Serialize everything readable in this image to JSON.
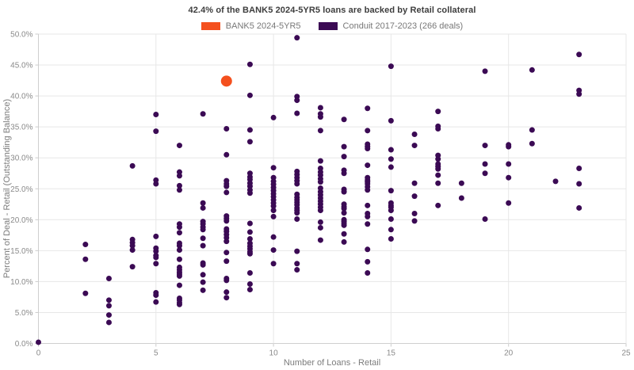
{
  "chart_data": {
    "type": "scatter",
    "title": "42.4% of the BANK5 2024-5YR5 loans are backed by Retail collateral",
    "xlabel": "Number of Loans - Retail",
    "ylabel": "Percent of Deal - Retail (Outstanding Balance)",
    "xlim": [
      0,
      25
    ],
    "ylim": [
      0,
      50
    ],
    "x_ticks": [
      0,
      5,
      10,
      15,
      20,
      25
    ],
    "y_ticks": [
      0,
      5,
      10,
      15,
      20,
      25,
      30,
      35,
      40,
      45,
      50
    ],
    "y_tick_labels": [
      "0.0%",
      "5.0%",
      "10.0%",
      "15.0%",
      "20.0%",
      "25.0%",
      "30.0%",
      "35.0%",
      "40.0%",
      "45.0%",
      "50.0%"
    ],
    "grid": true,
    "legend_position": "top-center",
    "series": [
      {
        "name": "BANK5 2024-5YR5",
        "color": "#f4501e",
        "marker_diameter": 14,
        "points": [
          [
            8,
            42.4
          ]
        ]
      },
      {
        "name": "Conduit 2017-2023 (266 deals)",
        "color": "#3b0a54",
        "marker_diameter": 7,
        "points": [
          [
            0,
            0.2
          ],
          [
            2,
            16.0
          ],
          [
            2,
            13.6
          ],
          [
            2,
            8.1
          ],
          [
            3,
            10.5
          ],
          [
            3,
            7.0
          ],
          [
            3,
            6.1
          ],
          [
            3,
            4.6
          ],
          [
            3,
            3.4
          ],
          [
            4,
            28.7
          ],
          [
            4,
            16.8
          ],
          [
            4,
            16.3
          ],
          [
            4,
            15.8
          ],
          [
            4,
            15.1
          ],
          [
            4,
            12.4
          ],
          [
            5,
            37.0
          ],
          [
            5,
            34.3
          ],
          [
            5,
            26.4
          ],
          [
            5,
            25.8
          ],
          [
            5,
            17.3
          ],
          [
            5,
            15.4
          ],
          [
            5,
            14.9
          ],
          [
            5,
            14.2
          ],
          [
            5,
            13.9
          ],
          [
            5,
            12.9
          ],
          [
            5,
            8.2
          ],
          [
            5,
            7.8
          ],
          [
            5,
            6.7
          ],
          [
            6,
            32.0
          ],
          [
            6,
            27.7
          ],
          [
            6,
            27.1
          ],
          [
            6,
            25.5
          ],
          [
            6,
            24.8
          ],
          [
            6,
            19.3
          ],
          [
            6,
            18.8
          ],
          [
            6,
            17.9
          ],
          [
            6,
            16.2
          ],
          [
            6,
            15.8
          ],
          [
            6,
            15.1
          ],
          [
            6,
            13.6
          ],
          [
            6,
            12.3
          ],
          [
            6,
            11.9
          ],
          [
            6,
            11.5
          ],
          [
            6,
            11.2
          ],
          [
            6,
            10.9
          ],
          [
            6,
            9.4
          ],
          [
            6,
            7.3
          ],
          [
            6,
            7.0
          ],
          [
            6,
            6.6
          ],
          [
            6,
            6.3
          ],
          [
            7,
            37.1
          ],
          [
            7,
            22.7
          ],
          [
            7,
            21.9
          ],
          [
            7,
            19.7
          ],
          [
            7,
            19.3
          ],
          [
            7,
            18.8
          ],
          [
            7,
            18.4
          ],
          [
            7,
            17.0
          ],
          [
            7,
            15.8
          ],
          [
            7,
            13.0
          ],
          [
            7,
            12.7
          ],
          [
            7,
            11.1
          ],
          [
            7,
            9.9
          ],
          [
            7,
            8.6
          ],
          [
            8,
            34.7
          ],
          [
            8,
            30.5
          ],
          [
            8,
            26.3
          ],
          [
            8,
            25.8
          ],
          [
            8,
            25.4
          ],
          [
            8,
            24.4
          ],
          [
            8,
            20.6
          ],
          [
            8,
            20.2
          ],
          [
            8,
            19.8
          ],
          [
            8,
            18.5
          ],
          [
            8,
            18.1
          ],
          [
            8,
            17.6
          ],
          [
            8,
            17.1
          ],
          [
            8,
            16.5
          ],
          [
            8,
            14.7
          ],
          [
            8,
            13.3
          ],
          [
            8,
            10.5
          ],
          [
            8,
            10.2
          ],
          [
            8,
            8.3
          ],
          [
            8,
            7.4
          ],
          [
            9,
            45.1
          ],
          [
            9,
            40.1
          ],
          [
            9,
            34.5
          ],
          [
            9,
            32.6
          ],
          [
            9,
            27.5
          ],
          [
            9,
            26.9
          ],
          [
            9,
            26.5
          ],
          [
            9,
            25.9
          ],
          [
            9,
            25.4
          ],
          [
            9,
            24.8
          ],
          [
            9,
            24.3
          ],
          [
            9,
            19.4
          ],
          [
            9,
            18.0
          ],
          [
            9,
            16.9
          ],
          [
            9,
            16.2
          ],
          [
            9,
            15.7
          ],
          [
            9,
            15.3
          ],
          [
            9,
            14.8
          ],
          [
            9,
            14.5
          ],
          [
            9,
            11.4
          ],
          [
            9,
            9.6
          ],
          [
            9,
            8.7
          ],
          [
            10,
            36.5
          ],
          [
            10,
            28.4
          ],
          [
            10,
            26.8
          ],
          [
            10,
            26.2
          ],
          [
            10,
            25.7
          ],
          [
            10,
            25.2
          ],
          [
            10,
            24.7
          ],
          [
            10,
            24.2
          ],
          [
            10,
            23.7
          ],
          [
            10,
            23.2
          ],
          [
            10,
            22.7
          ],
          [
            10,
            22.2
          ],
          [
            10,
            21.5
          ],
          [
            10,
            20.5
          ],
          [
            10,
            17.2
          ],
          [
            10,
            15.1
          ],
          [
            10,
            12.9
          ],
          [
            11,
            49.4
          ],
          [
            11,
            39.9
          ],
          [
            11,
            39.3
          ],
          [
            11,
            37.2
          ],
          [
            11,
            27.8
          ],
          [
            11,
            27.3
          ],
          [
            11,
            26.8
          ],
          [
            11,
            26.3
          ],
          [
            11,
            25.8
          ],
          [
            11,
            24.1
          ],
          [
            11,
            23.6
          ],
          [
            11,
            23.2
          ],
          [
            11,
            22.8
          ],
          [
            11,
            22.4
          ],
          [
            11,
            21.9
          ],
          [
            11,
            21.5
          ],
          [
            11,
            21.1
          ],
          [
            11,
            20.1
          ],
          [
            11,
            14.9
          ],
          [
            11,
            12.9
          ],
          [
            11,
            11.9
          ],
          [
            12,
            38.1
          ],
          [
            12,
            37.1
          ],
          [
            12,
            36.6
          ],
          [
            12,
            34.4
          ],
          [
            12,
            29.5
          ],
          [
            12,
            28.3
          ],
          [
            12,
            27.7
          ],
          [
            12,
            27.2
          ],
          [
            12,
            26.6
          ],
          [
            12,
            26.1
          ],
          [
            12,
            25.1
          ],
          [
            12,
            24.5
          ],
          [
            12,
            24.0
          ],
          [
            12,
            23.5
          ],
          [
            12,
            23.0
          ],
          [
            12,
            22.5
          ],
          [
            12,
            22.0
          ],
          [
            12,
            21.5
          ],
          [
            12,
            19.6
          ],
          [
            12,
            18.7
          ],
          [
            12,
            16.7
          ],
          [
            13,
            36.2
          ],
          [
            13,
            31.8
          ],
          [
            13,
            30.2
          ],
          [
            13,
            28.0
          ],
          [
            13,
            27.5
          ],
          [
            13,
            24.9
          ],
          [
            13,
            24.5
          ],
          [
            13,
            22.5
          ],
          [
            13,
            22.1
          ],
          [
            13,
            21.8
          ],
          [
            13,
            21.1
          ],
          [
            13,
            20.0
          ],
          [
            13,
            19.7
          ],
          [
            13,
            19.4
          ],
          [
            13,
            19.1
          ],
          [
            13,
            17.7
          ],
          [
            13,
            16.4
          ],
          [
            14,
            38.0
          ],
          [
            14,
            34.4
          ],
          [
            14,
            32.2
          ],
          [
            14,
            31.8
          ],
          [
            14,
            31.5
          ],
          [
            14,
            28.8
          ],
          [
            14,
            26.8
          ],
          [
            14,
            26.4
          ],
          [
            14,
            26.1
          ],
          [
            14,
            25.8
          ],
          [
            14,
            25.3
          ],
          [
            14,
            24.8
          ],
          [
            14,
            22.3
          ],
          [
            14,
            21.0
          ],
          [
            14,
            20.5
          ],
          [
            14,
            19.3
          ],
          [
            14,
            15.2
          ],
          [
            14,
            13.2
          ],
          [
            14,
            11.4
          ],
          [
            15,
            44.8
          ],
          [
            15,
            36.0
          ],
          [
            15,
            31.3
          ],
          [
            15,
            29.8
          ],
          [
            15,
            28.5
          ],
          [
            15,
            24.7
          ],
          [
            15,
            22.7
          ],
          [
            15,
            22.3
          ],
          [
            15,
            22.0
          ],
          [
            15,
            21.5
          ],
          [
            15,
            20.1
          ],
          [
            15,
            18.4
          ],
          [
            15,
            16.9
          ],
          [
            16,
            33.8
          ],
          [
            16,
            32.0
          ],
          [
            16,
            25.9
          ],
          [
            16,
            23.8
          ],
          [
            16,
            21.0
          ],
          [
            16,
            19.8
          ],
          [
            17,
            37.5
          ],
          [
            17,
            35.1
          ],
          [
            17,
            34.7
          ],
          [
            17,
            30.4
          ],
          [
            17,
            29.8
          ],
          [
            17,
            29.0
          ],
          [
            17,
            28.6
          ],
          [
            17,
            28.2
          ],
          [
            17,
            27.2
          ],
          [
            17,
            25.9
          ],
          [
            17,
            22.3
          ],
          [
            18,
            25.9
          ],
          [
            18,
            23.5
          ],
          [
            19,
            44.0
          ],
          [
            19,
            32.0
          ],
          [
            19,
            29.0
          ],
          [
            19,
            27.5
          ],
          [
            19,
            20.1
          ],
          [
            20,
            32.1
          ],
          [
            20,
            31.8
          ],
          [
            20,
            29.0
          ],
          [
            20,
            26.8
          ],
          [
            20,
            22.7
          ],
          [
            21,
            44.2
          ],
          [
            21,
            34.5
          ],
          [
            21,
            32.3
          ],
          [
            22,
            26.2
          ],
          [
            23,
            46.7
          ],
          [
            23,
            40.9
          ],
          [
            23,
            40.3
          ],
          [
            23,
            28.3
          ],
          [
            23,
            25.8
          ],
          [
            23,
            21.9
          ]
        ]
      }
    ]
  }
}
